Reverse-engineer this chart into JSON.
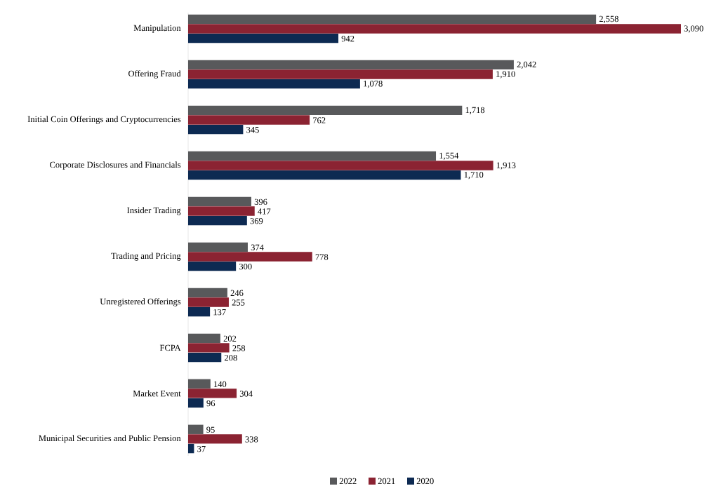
{
  "chart_data": {
    "type": "bar",
    "orientation": "horizontal",
    "categories": [
      "Manipulation",
      "Offering Fraud",
      "Initial Coin Offerings and Cryptocurrencies",
      "Corporate Disclosures and Financials",
      "Insider Trading",
      "Trading and Pricing",
      "Unregistered Offerings",
      "FCPA",
      "Market Event",
      "Municipal Securities and Public Pension"
    ],
    "series": [
      {
        "name": "2022",
        "color": "#58595b",
        "values": [
          2558,
          2042,
          1718,
          1554,
          396,
          374,
          246,
          202,
          140,
          95
        ],
        "value_labels": [
          "2,558",
          "2,042",
          "1,718",
          "1,554",
          "396",
          "374",
          "246",
          "202",
          "140",
          "95"
        ]
      },
      {
        "name": "2021",
        "color": "#8b2332",
        "values": [
          3090,
          1910,
          762,
          1913,
          417,
          778,
          255,
          258,
          304,
          338
        ],
        "value_labels": [
          "3,090",
          "1,910",
          "762",
          "1,913",
          "417",
          "778",
          "255",
          "258",
          "304",
          "338"
        ]
      },
      {
        "name": "2020",
        "color": "#0d2a52",
        "values": [
          942,
          1078,
          345,
          1710,
          369,
          300,
          137,
          208,
          96,
          37
        ],
        "value_labels": [
          "942",
          "1,078",
          "345",
          "1,710",
          "369",
          "300",
          "137",
          "208",
          "96",
          "37"
        ]
      }
    ],
    "legend": "bottom"
  }
}
